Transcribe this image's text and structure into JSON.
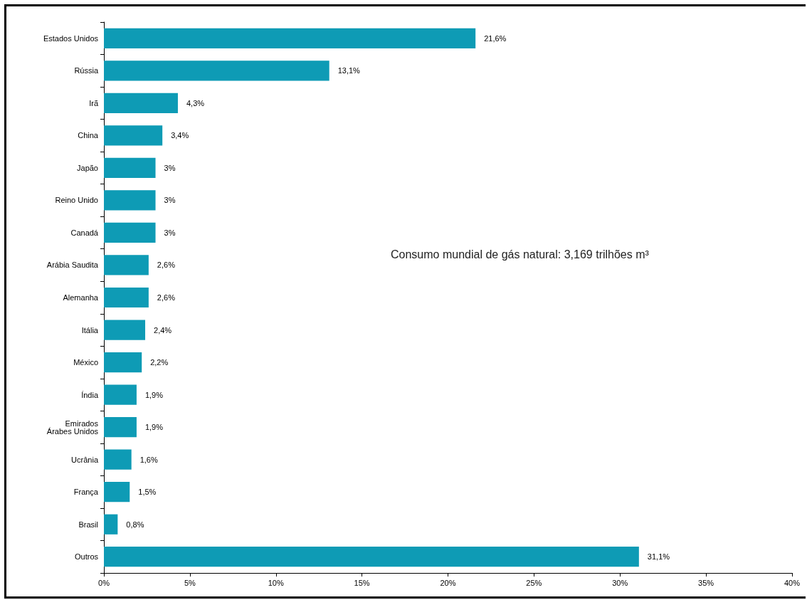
{
  "chart_data": {
    "type": "bar",
    "orientation": "horizontal",
    "categories": [
      "Estados Unidos",
      "Rússia",
      "Irã",
      "China",
      "Japão",
      "Reino Unido",
      "Canadá",
      "Arábia Saudita",
      "Alemanha",
      "Itália",
      "México",
      "Índia",
      "Emirados\nÁrabes Unidos",
      "Ucrânia",
      "França",
      "Brasil",
      "Outros"
    ],
    "values": [
      21.6,
      13.1,
      4.3,
      3.4,
      3,
      3,
      3,
      2.6,
      2.6,
      2.4,
      2.2,
      1.9,
      1.9,
      1.6,
      1.5,
      0.8,
      31.1
    ],
    "value_labels": [
      "21,6%",
      "13,1%",
      "4,3%",
      "3,4%",
      "3%",
      "3%",
      "3%",
      "2,6%",
      "2,6%",
      "2,4%",
      "2,2%",
      "1,9%",
      "1,9%",
      "1,6%",
      "1,5%",
      "0,8%",
      "31,1%"
    ],
    "color": "#0e9bb5",
    "xlim": [
      0,
      40
    ],
    "xticks": [
      {
        "value": 0,
        "label": "0%"
      },
      {
        "value": 5,
        "label": "5%"
      },
      {
        "value": 10,
        "label": "10%"
      },
      {
        "value": 15,
        "label": "15%"
      },
      {
        "value": 20,
        "label": "20%"
      },
      {
        "value": 25,
        "label": "25%"
      },
      {
        "value": 30,
        "label": "30%"
      },
      {
        "value": 35,
        "label": "35%"
      },
      {
        "value": 40,
        "label": "40%"
      }
    ],
    "annotations": [
      "Consumo mundial de gás natural: 3,169 trilhões m³"
    ],
    "grid": false
  }
}
